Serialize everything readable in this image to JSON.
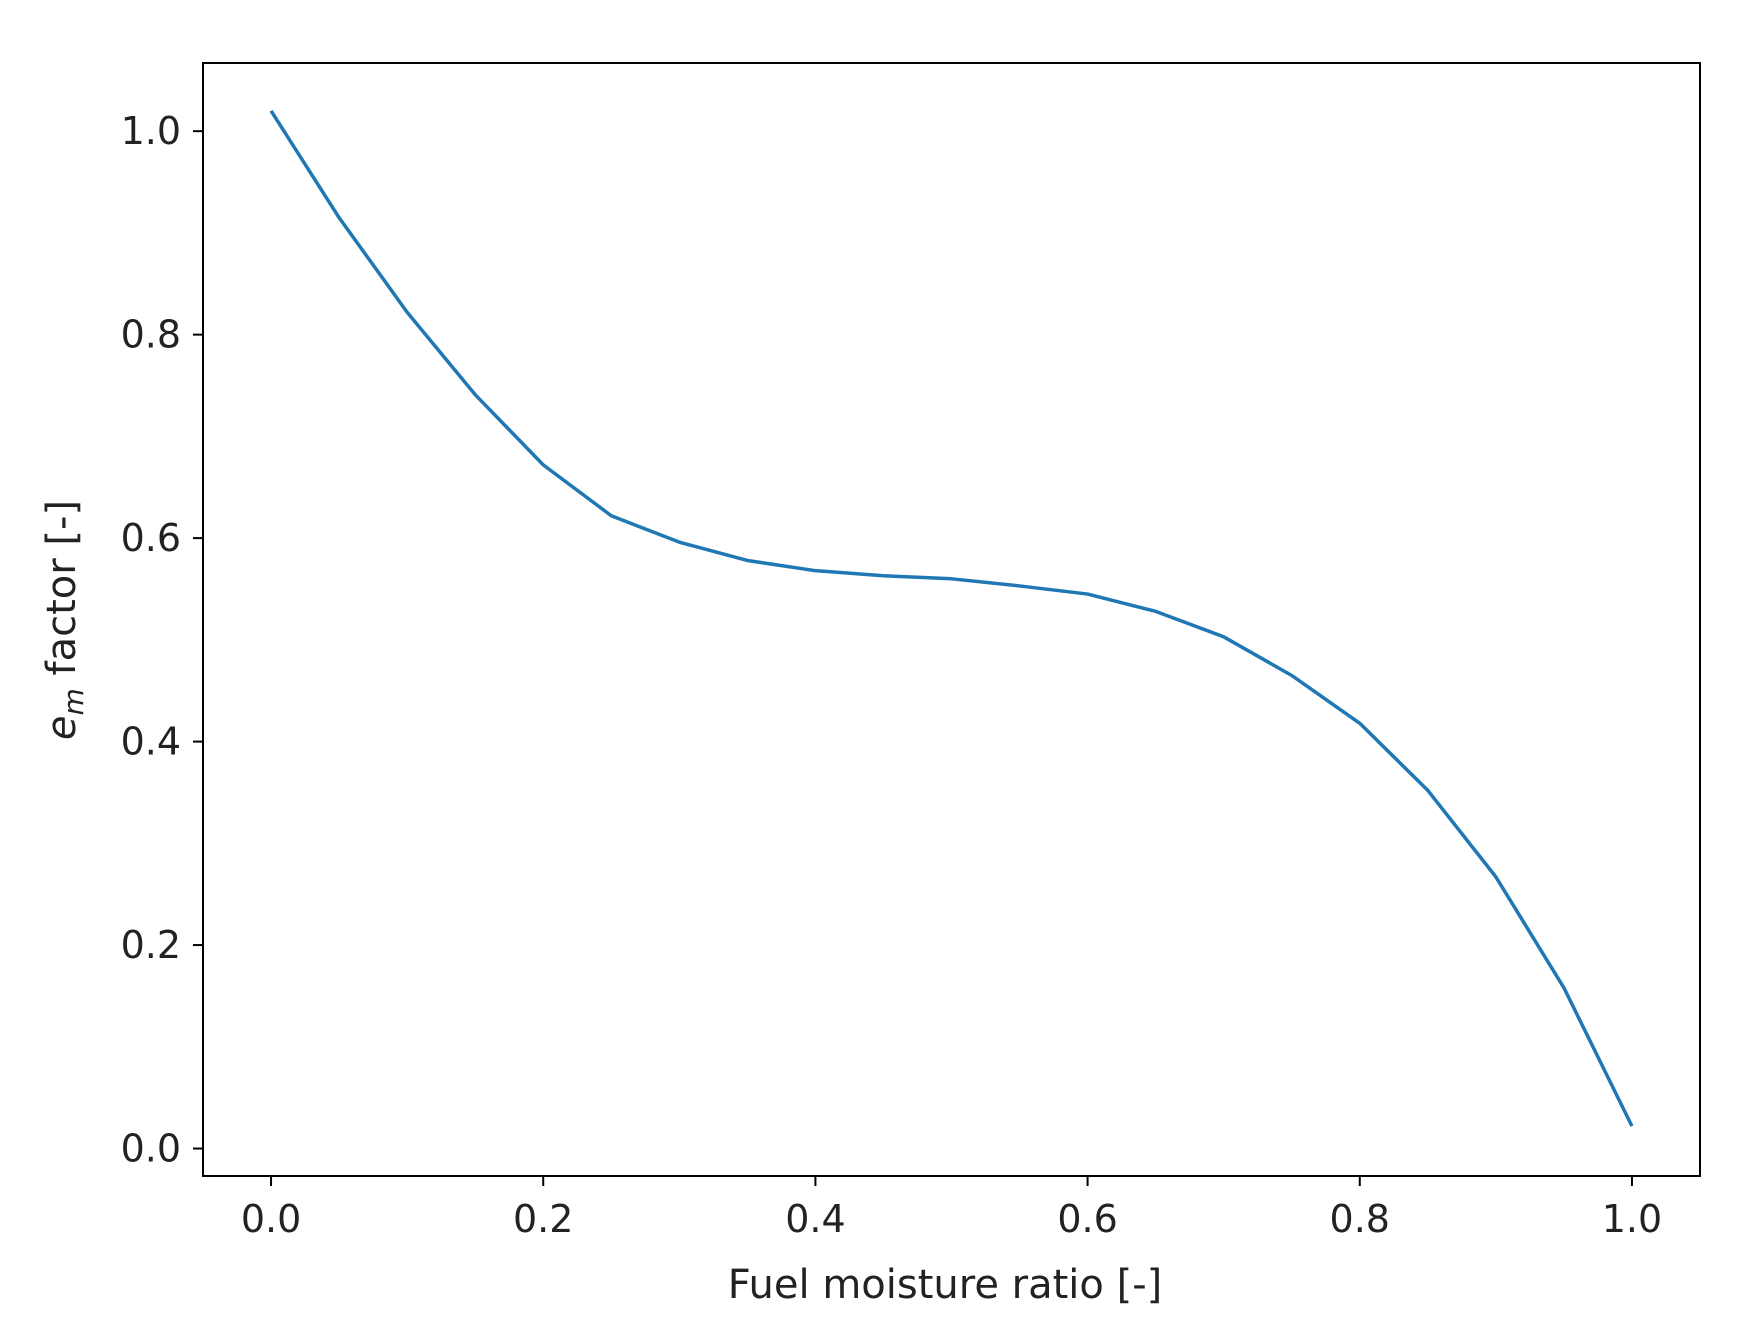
{
  "chart_data": {
    "type": "line",
    "title": "",
    "xlabel": "Fuel moisture ratio [-]",
    "ylabel": {
      "base": "e",
      "subscript": "m",
      "rest": " factor [-]"
    },
    "xlim": [
      -0.05,
      1.05
    ],
    "ylim": [
      -0.027,
      1.067
    ],
    "xticks": [
      {
        "value": 0.0,
        "label": "0.0"
      },
      {
        "value": 0.2,
        "label": "0.2"
      },
      {
        "value": 0.4,
        "label": "0.4"
      },
      {
        "value": 0.6,
        "label": "0.6"
      },
      {
        "value": 0.8,
        "label": "0.8"
      },
      {
        "value": 1.0,
        "label": "1.0"
      }
    ],
    "yticks": [
      {
        "value": 0.0,
        "label": "0.0"
      },
      {
        "value": 0.2,
        "label": "0.2"
      },
      {
        "value": 0.4,
        "label": "0.4"
      },
      {
        "value": 0.6,
        "label": "0.6"
      },
      {
        "value": 0.8,
        "label": "0.8"
      },
      {
        "value": 1.0,
        "label": "1.0"
      }
    ],
    "grid": false,
    "series": [
      {
        "color": "#1f77b4",
        "x": [
          0.0,
          0.05,
          0.1,
          0.15,
          0.2,
          0.25,
          0.3,
          0.35,
          0.4,
          0.45,
          0.5,
          0.55,
          0.6,
          0.65,
          0.7,
          0.75,
          0.8,
          0.85,
          0.9,
          0.95,
          1.0
        ],
        "y": [
          1.02,
          0.915,
          0.822,
          0.741,
          0.672,
          0.622,
          0.596,
          0.578,
          0.568,
          0.563,
          0.56,
          0.553,
          0.545,
          0.528,
          0.503,
          0.465,
          0.418,
          0.352,
          0.267,
          0.158,
          0.022
        ]
      }
    ]
  }
}
